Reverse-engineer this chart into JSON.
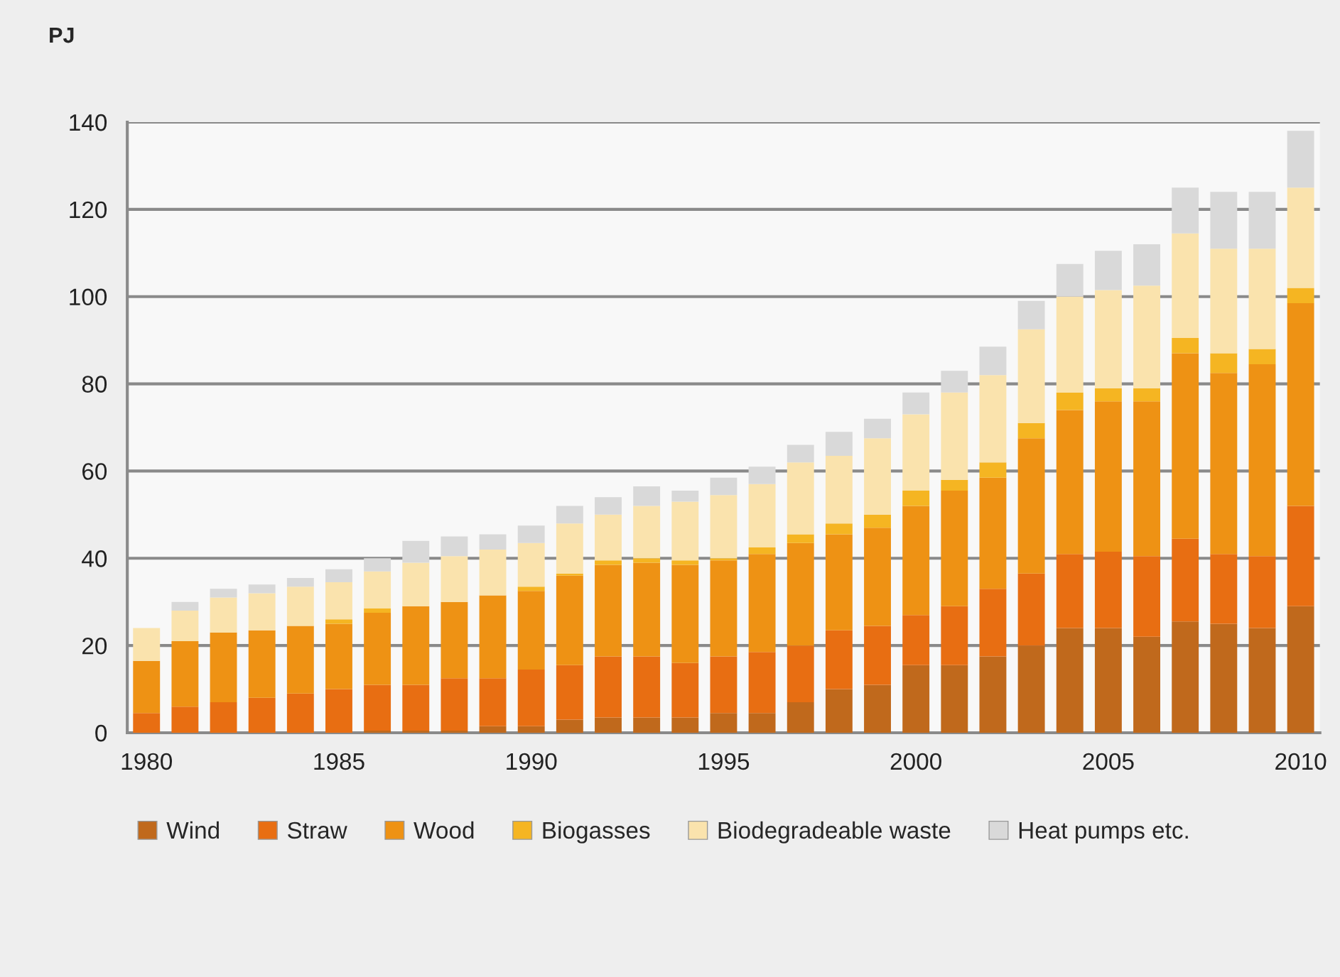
{
  "chart_data": {
    "type": "bar",
    "stacked": true,
    "ylabel": "PJ",
    "x": [
      1980,
      1981,
      1982,
      1983,
      1984,
      1985,
      1986,
      1987,
      1988,
      1989,
      1990,
      1991,
      1992,
      1993,
      1994,
      1995,
      1996,
      1997,
      1998,
      1999,
      2000,
      2001,
      2002,
      2003,
      2004,
      2005,
      2006,
      2007,
      2008,
      2009,
      2010
    ],
    "series": [
      {
        "name": "Wind",
        "color": "#c0691c",
        "values": [
          0,
          0,
          0,
          0,
          0,
          0,
          0.5,
          0.5,
          0.5,
          1.5,
          1.5,
          3,
          3.5,
          3.5,
          3.5,
          4.5,
          4.5,
          7,
          10,
          11,
          15.5,
          15.5,
          17.5,
          20,
          24,
          24,
          22,
          25.5,
          25,
          24,
          29
        ]
      },
      {
        "name": "Straw",
        "color": "#e86e12",
        "values": [
          4.5,
          6,
          7,
          8,
          9,
          10,
          10.5,
          10.5,
          12,
          11,
          13,
          12.5,
          14,
          14,
          12.5,
          13,
          14,
          13,
          13.5,
          13.5,
          11.5,
          13.5,
          15.5,
          16.5,
          17,
          17.5,
          18.5,
          19,
          16,
          16.5,
          23
        ]
      },
      {
        "name": "Wood",
        "color": "#ee9214",
        "values": [
          12,
          15,
          16,
          15.5,
          15.5,
          15,
          16.5,
          18,
          17.5,
          19,
          18,
          20.5,
          21,
          21.5,
          22.5,
          22,
          22.5,
          23.5,
          22,
          22.5,
          25,
          26.5,
          25.5,
          31,
          33,
          34.5,
          35.5,
          42.5,
          41.5,
          44,
          46.5
        ]
      },
      {
        "name": "Biogasses",
        "color": "#f5b522",
        "values": [
          0,
          0,
          0,
          0,
          0,
          1,
          1,
          0,
          0,
          0,
          1,
          0.5,
          1,
          1,
          1,
          0.5,
          1.5,
          2,
          2.5,
          3,
          3.5,
          2.5,
          3.5,
          3.5,
          4,
          3,
          3,
          3.5,
          4.5,
          3.5,
          3.5
        ]
      },
      {
        "name": "Biodegradeable waste",
        "color": "#fae3ad",
        "values": [
          7.5,
          7,
          8,
          8.5,
          9,
          8.5,
          8.5,
          10,
          10.5,
          10.5,
          10,
          11.5,
          10.5,
          12,
          13.5,
          14.5,
          14.5,
          16.5,
          15.5,
          17.5,
          17.5,
          20,
          20,
          21.5,
          22,
          22.5,
          23.5,
          24,
          24,
          23,
          23
        ]
      },
      {
        "name": "Heat pumps etc.",
        "color": "#d9d9d9",
        "values": [
          0,
          2,
          2,
          2,
          2,
          3,
          3,
          5,
          4.5,
          3.5,
          4,
          4,
          4,
          4.5,
          2.5,
          4,
          4,
          4,
          5.5,
          4.5,
          5,
          5,
          6.5,
          6.5,
          7.5,
          9,
          9.5,
          10.5,
          13,
          13,
          13
        ]
      }
    ],
    "xlim": [
      1979.5,
      2010.5
    ],
    "xticks": [
      1980,
      1985,
      1990,
      1995,
      2000,
      2005,
      2010
    ],
    "ylim": [
      0,
      140
    ],
    "yticks": [
      0,
      20,
      40,
      60,
      80,
      100,
      120,
      140
    ],
    "grid": "y",
    "legend": "bottom"
  }
}
